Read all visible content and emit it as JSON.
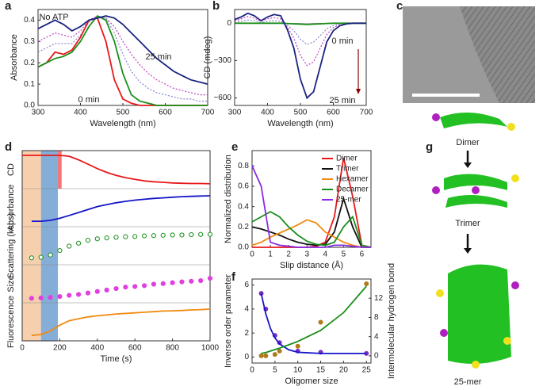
{
  "chart_data": [
    {
      "panel": "a",
      "type": "line",
      "xlabel": "Wavelength (nm)",
      "ylabel": "Absorbance",
      "x": [
        300,
        320,
        340,
        360,
        380,
        400,
        420,
        440,
        460,
        480,
        500,
        520,
        540,
        560,
        580,
        600,
        620,
        640,
        660,
        680,
        700
      ],
      "xlim": [
        300,
        700
      ],
      "xticks": [
        300,
        400,
        500,
        600,
        700
      ],
      "ylim": [
        0,
        0.45
      ],
      "yticks": [
        {
          "value": 0,
          "label": "0.0"
        },
        {
          "value": 0.1,
          "label": "0.1"
        },
        {
          "value": 0.2,
          "label": "0.2"
        },
        {
          "value": 0.3,
          "label": "0.3"
        },
        {
          "value": 0.4,
          "label": "0.4"
        }
      ],
      "series": [
        {
          "color": "#c040c0",
          "dash": true,
          "values": [
            0.3,
            0.32,
            0.34,
            0.33,
            0.32,
            0.35,
            0.4,
            0.42,
            0.41,
            0.37,
            0.3,
            0.24,
            0.19,
            0.15,
            0.12,
            0.1,
            0.08,
            0.07,
            0.06,
            0.05,
            0.05
          ]
        },
        {
          "color": "#8888cc",
          "dash": true,
          "values": [
            0.25,
            0.27,
            0.29,
            0.29,
            0.29,
            0.33,
            0.39,
            0.42,
            0.41,
            0.34,
            0.24,
            0.16,
            0.11,
            0.08,
            0.06,
            0.05,
            0.04,
            0.03,
            0.03,
            0.02,
            0.02
          ]
        },
        {
          "color": "#e8191b",
          "values": [
            0.18,
            0.2,
            0.25,
            0.24,
            0.26,
            0.32,
            0.4,
            0.41,
            0.3,
            0.12,
            0.03,
            0.01,
            0,
            0,
            0,
            0,
            0,
            0,
            0,
            0,
            0
          ]
        },
        {
          "color": "#1a8f1a",
          "values": [
            0.18,
            0.2,
            0.22,
            0.23,
            0.25,
            0.3,
            0.37,
            0.42,
            0.4,
            0.3,
            0.15,
            0.05,
            0.02,
            0.01,
            0,
            0,
            0,
            0,
            0,
            0,
            0
          ]
        },
        {
          "color": "#1a237e",
          "values": [
            0.36,
            0.38,
            0.4,
            0.38,
            0.35,
            0.37,
            0.4,
            0.41,
            0.42,
            0.41,
            0.38,
            0.34,
            0.3,
            0.26,
            0.22,
            0.19,
            0.16,
            0.14,
            0.12,
            0.11,
            0.1
          ]
        }
      ],
      "annotations": [
        {
          "text": "No ATP",
          "color": "#e8191b"
        },
        {
          "text": "25 min",
          "color": "#1a237e"
        },
        {
          "text": "0 min",
          "color": "#1a8f1a"
        }
      ]
    },
    {
      "panel": "b",
      "type": "line",
      "xlabel": "Wavelength (nm)",
      "ylabel": "CD (mdeg)",
      "x": [
        300,
        320,
        340,
        360,
        380,
        400,
        420,
        440,
        460,
        480,
        500,
        520,
        540,
        560,
        580,
        600,
        620,
        640,
        660,
        680,
        700
      ],
      "xlim": [
        300,
        700
      ],
      "xticks": [
        300,
        400,
        500,
        600,
        700
      ],
      "ylim": [
        -660,
        110
      ],
      "yticks": [
        {
          "value": -600,
          "label": "−600"
        },
        {
          "value": -300,
          "label": "−300"
        },
        0
      ],
      "series": [
        {
          "color": "#c040c0",
          "dash": true,
          "values": [
            20,
            35,
            55,
            40,
            15,
            35,
            45,
            35,
            -30,
            -120,
            -260,
            -340,
            -310,
            -200,
            -90,
            -35,
            -12,
            -3,
            0,
            0,
            0
          ]
        },
        {
          "color": "#8888cc",
          "dash": true,
          "values": [
            10,
            15,
            25,
            20,
            5,
            15,
            20,
            15,
            -15,
            -60,
            -130,
            -170,
            -150,
            -100,
            -45,
            -18,
            -6,
            -2,
            0,
            0,
            0
          ]
        },
        {
          "color": "#1a8f1a",
          "values": [
            0,
            0,
            0,
            0,
            0,
            0,
            0,
            0,
            -2,
            -5,
            -8,
            -10,
            -8,
            -5,
            -2,
            0,
            0,
            0,
            0,
            0,
            0
          ]
        },
        {
          "color": "#1a237e",
          "values": [
            30,
            50,
            80,
            60,
            20,
            50,
            70,
            60,
            -50,
            -200,
            -450,
            -600,
            -550,
            -350,
            -150,
            -60,
            -20,
            -5,
            0,
            0,
            0
          ]
        }
      ],
      "annotations": [
        {
          "text": "0 min",
          "color": "#1a8f1a"
        },
        {
          "text": "25 min",
          "color": "#1a237e"
        }
      ]
    },
    {
      "panel": "d",
      "type": "tracks",
      "xlabel": "Time (s)",
      "x": [
        0,
        50,
        100,
        150,
        200,
        250,
        300,
        350,
        400,
        450,
        500,
        550,
        600,
        650,
        700,
        750,
        800,
        850,
        900,
        950,
        1000
      ],
      "xlim": [
        0,
        1000
      ],
      "xticks": [
        0,
        200,
        400,
        600,
        800,
        1000
      ],
      "ylim": [
        0,
        1
      ],
      "regions": [
        {
          "from": 0,
          "to": 100,
          "color": "#f5c8a0"
        },
        {
          "from": 100,
          "to": 190,
          "color": "#6f9fd0"
        },
        {
          "from": 190,
          "to": 210,
          "color": "#f06060"
        }
      ],
      "series": [
        {
          "name": "CD",
          "color": "#e8191b",
          "values": [
            1,
            1,
            1,
            1,
            1,
            0.97,
            0.85,
            0.7,
            0.55,
            0.42,
            0.32,
            0.24,
            0.18,
            0.13,
            0.1,
            0.08,
            0.06,
            0.05,
            0.04,
            0.04,
            0.03
          ]
        },
        {
          "name": "Absorbance",
          "color": "#1515c8",
          "values": [
            null,
            0.05,
            0.05,
            0.08,
            0.15,
            0.25,
            0.35,
            0.45,
            0.55,
            0.62,
            0.68,
            0.73,
            0.77,
            0.8,
            0.83,
            0.85,
            0.87,
            0.89,
            0.9,
            0.91,
            0.92
          ]
        },
        {
          "name": "Scattering (kcps)",
          "color": "#1a8f1a",
          "marker": true,
          "values": [
            null,
            0.1,
            0.12,
            0.2,
            0.35,
            0.5,
            0.6,
            0.7,
            0.75,
            0.78,
            0.8,
            0.82,
            0.83,
            0.85,
            0.86,
            0.87,
            0.88,
            0.88,
            0.89,
            0.9,
            0.9
          ]
        },
        {
          "name": "Size",
          "color": "#e040e0",
          "marker": true,
          "values": [
            null,
            0.02,
            0.03,
            0.05,
            0.08,
            0.12,
            0.15,
            0.2,
            0.25,
            0.3,
            0.35,
            0.4,
            0.42,
            0.45,
            0.5,
            0.52,
            0.55,
            0.58,
            0.6,
            0.62,
            0.7
          ]
        },
        {
          "name": "Fluorescence",
          "color": "#f08a10",
          "values": [
            null,
            0.05,
            0.08,
            0.2,
            0.4,
            0.55,
            0.62,
            0.68,
            0.72,
            0.75,
            0.78,
            0.8,
            0.82,
            0.84,
            0.86,
            0.88,
            0.89,
            0.9,
            0.92,
            0.93,
            0.95
          ]
        }
      ]
    },
    {
      "panel": "e",
      "type": "line",
      "xlabel": "Slip distance (Å)",
      "ylabel": "Normalized distribution",
      "legend": "upper right",
      "x": [
        0,
        0.5,
        1,
        1.5,
        2,
        2.5,
        3,
        3.5,
        4,
        4.5,
        5,
        5.5,
        6,
        6.5
      ],
      "xlim": [
        0,
        6.5
      ],
      "xticks": [
        0,
        1,
        2,
        3,
        4,
        5,
        6
      ],
      "ylim": [
        0,
        0.95
      ],
      "yticks": [
        {
          "value": 0,
          "label": "0.0"
        },
        {
          "value": 0.2,
          "label": "0.2"
        },
        {
          "value": 0.4,
          "label": "0.4"
        },
        {
          "value": 0.6,
          "label": "0.6"
        },
        {
          "value": 0.8,
          "label": "0.8"
        }
      ],
      "series": [
        {
          "name": "Dimer",
          "color": "#e8191b",
          "values": [
            0,
            0,
            0,
            0,
            0,
            0,
            0,
            0.01,
            0.05,
            0.3,
            0.88,
            0.5,
            0.02,
            0
          ]
        },
        {
          "name": "Trimer",
          "color": "#111111",
          "values": [
            0.2,
            0.18,
            0.15,
            0.12,
            0.08,
            0.05,
            0.03,
            0.02,
            0.03,
            0.15,
            0.48,
            0.2,
            0,
            0
          ]
        },
        {
          "name": "Hexamer",
          "color": "#f08a10",
          "values": [
            0.02,
            0.05,
            0.1,
            0.14,
            0.18,
            0.22,
            0.27,
            0.24,
            0.15,
            0.1,
            0.05,
            0.02,
            0,
            0
          ]
        },
        {
          "name": "Decamer",
          "color": "#1a8f1a",
          "values": [
            0.25,
            0.3,
            0.35,
            0.3,
            0.2,
            0.12,
            0.06,
            0.03,
            0.02,
            0.05,
            0.2,
            0.3,
            0.02,
            0
          ]
        },
        {
          "name": "25-mer",
          "color": "#8a2be2",
          "values": [
            0.8,
            0.6,
            0.05,
            0.02,
            0.01,
            0,
            0,
            0,
            0,
            0.02,
            0.02,
            0.01,
            0,
            0
          ]
        }
      ]
    },
    {
      "panel": "f",
      "type": "scatter",
      "xlabel": "Oligomer size",
      "ylabel": "Inverse order parameter",
      "y2label": "Intermolecular hydrogen bond",
      "x": [
        2,
        3,
        5,
        6,
        10,
        15,
        25
      ],
      "xlim": [
        0,
        26
      ],
      "xticks": [
        0,
        5,
        10,
        15,
        20,
        25
      ],
      "ylim": [
        -0.5,
        6.5
      ],
      "yticks": [
        0,
        2,
        4,
        6
      ],
      "y2lim": [
        -1.5,
        16
      ],
      "y2ticks": [
        0,
        4,
        8,
        12
      ],
      "series": [
        {
          "color": "#7b2fbf",
          "marker": true,
          "values": [
            5.3,
            4.0,
            1.8,
            1.2,
            0.5,
            0.4,
            0.3
          ]
        },
        {
          "color": "#b07a1a",
          "marker": true,
          "axis": "y2",
          "values": [
            0,
            0,
            0.3,
            1,
            2,
            7,
            15
          ]
        },
        {
          "color": "#1515c8",
          "x": [
            2,
            3,
            4,
            5,
            6,
            8,
            10,
            15,
            20,
            25
          ],
          "values": [
            5.3,
            3.6,
            2.4,
            1.6,
            1.1,
            0.6,
            0.4,
            0.3,
            0.3,
            0.3
          ]
        },
        {
          "color": "#1a8f1a",
          "axis": "y2",
          "x": [
            2,
            3,
            4,
            5,
            6,
            8,
            10,
            15,
            20,
            25
          ],
          "values": [
            0.5,
            0.7,
            1.0,
            1.3,
            1.6,
            2.3,
            3,
            5.3,
            9,
            14.5
          ]
        }
      ]
    }
  ],
  "images": [
    {
      "panel": "c"
    },
    {
      "panel": "g",
      "labels": [
        "Dimer",
        "Trimer",
        "25-mer"
      ]
    }
  ]
}
